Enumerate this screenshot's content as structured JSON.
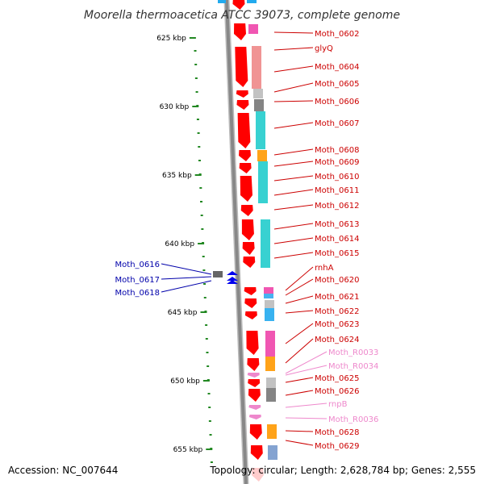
{
  "title": "Moorella thermoacetica ATCC 39073, complete genome",
  "footer": {
    "accession": "Accession: NC_007644",
    "topology": "Topology: circular; Length: 2,628,784 bp; Genes: 2,555"
  },
  "scale": {
    "ticks": [
      "625 kbp",
      "630 kbp",
      "635 kbp",
      "640 kbp",
      "645 kbp",
      "650 kbp",
      "655 kbp"
    ]
  },
  "colors": {
    "cds_forward": "#ff0000",
    "cds_reverse": "#0000ee",
    "rna": "#ee88cc",
    "label_forward": "#cc0000",
    "label_reverse": "#0000aa",
    "label_rna": "#ee88cc",
    "leader_line": "#cc0000",
    "scale_dash": "#228822",
    "backbone": "#888888"
  },
  "genes_forward": [
    {
      "label": "Moth_0602",
      "type": "cds"
    },
    {
      "label": "glyQ",
      "type": "cds"
    },
    {
      "label": "Moth_0604",
      "type": "cds"
    },
    {
      "label": "Moth_0605",
      "type": "cds"
    },
    {
      "label": "Moth_0606",
      "type": "cds"
    },
    {
      "label": "Moth_0607",
      "type": "cds"
    },
    {
      "label": "Moth_0608",
      "type": "cds"
    },
    {
      "label": "Moth_0609",
      "type": "cds"
    },
    {
      "label": "Moth_0610",
      "type": "cds"
    },
    {
      "label": "Moth_0611",
      "type": "cds"
    },
    {
      "label": "Moth_0612",
      "type": "cds"
    },
    {
      "label": "Moth_0613",
      "type": "cds"
    },
    {
      "label": "Moth_0614",
      "type": "cds"
    },
    {
      "label": "Moth_0615",
      "type": "cds"
    },
    {
      "label": "rnhA",
      "type": "cds"
    },
    {
      "label": "Moth_0620",
      "type": "cds"
    },
    {
      "label": "Moth_0621",
      "type": "cds"
    },
    {
      "label": "Moth_0622",
      "type": "cds"
    },
    {
      "label": "Moth_0623",
      "type": "cds"
    },
    {
      "label": "Moth_0624",
      "type": "cds"
    },
    {
      "label": "Moth_R0033",
      "type": "rna"
    },
    {
      "label": "Moth_R0034",
      "type": "rna"
    },
    {
      "label": "Moth_0625",
      "type": "cds"
    },
    {
      "label": "Moth_0626",
      "type": "cds"
    },
    {
      "label": "rnpB",
      "type": "rna"
    },
    {
      "label": "Moth_R0036",
      "type": "rna"
    },
    {
      "label": "Moth_0628",
      "type": "cds"
    },
    {
      "label": "Moth_0629",
      "type": "cds"
    }
  ],
  "genes_reverse": [
    {
      "label": "Moth_0616",
      "type": "cds"
    },
    {
      "label": "Moth_0617",
      "type": "cds"
    },
    {
      "label": "Moth_0618",
      "type": "cds"
    }
  ]
}
